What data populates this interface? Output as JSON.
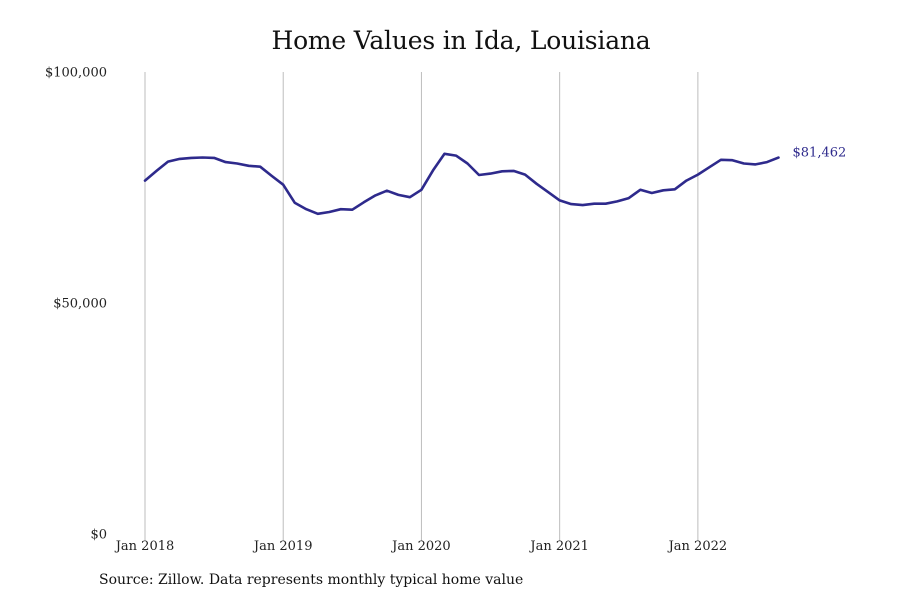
{
  "source_note": "Source: Zillow. Data represents monthly typical home value",
  "chart_data": {
    "type": "line",
    "title": "Home Values in Ida, Louisiana",
    "xlabel": "",
    "ylabel": "",
    "ylim": [
      0,
      100000
    ],
    "xlim": [
      "2018-01",
      "2022-08"
    ],
    "y_ticks": [
      {
        "value": 0,
        "label": "$0"
      },
      {
        "value": 50000,
        "label": "$50,000"
      },
      {
        "value": 100000,
        "label": "$100,000"
      }
    ],
    "x_ticks": [
      {
        "value": "2018-01",
        "label": "Jan 2018"
      },
      {
        "value": "2019-01",
        "label": "Jan 2019"
      },
      {
        "value": "2020-01",
        "label": "Jan 2020"
      },
      {
        "value": "2021-01",
        "label": "Jan 2021"
      },
      {
        "value": "2022-01",
        "label": "Jan 2022"
      }
    ],
    "grid": {
      "vertical": true,
      "horizontal": false
    },
    "line_color": "#2e2a8c",
    "grid_color": "#bdbdbd",
    "end_label": "$81,462",
    "series": [
      {
        "x": [
          "2018-01",
          "2018-02",
          "2018-03",
          "2018-04",
          "2018-05",
          "2018-06",
          "2018-07",
          "2018-08",
          "2018-09",
          "2018-10",
          "2018-11",
          "2018-12",
          "2019-01",
          "2019-02",
          "2019-03",
          "2019-04",
          "2019-05",
          "2019-06",
          "2019-07",
          "2019-08",
          "2019-09",
          "2019-10",
          "2019-11",
          "2019-12",
          "2020-01",
          "2020-02",
          "2020-03",
          "2020-04",
          "2020-05",
          "2020-06",
          "2020-07",
          "2020-08",
          "2020-09",
          "2020-10",
          "2020-11",
          "2020-12",
          "2021-01",
          "2021-02",
          "2021-03",
          "2021-04",
          "2021-05",
          "2021-06",
          "2021-07",
          "2021-08",
          "2021-09",
          "2021-10",
          "2021-11",
          "2021-12",
          "2022-01",
          "2022-02",
          "2022-03",
          "2022-04",
          "2022-05",
          "2022-06",
          "2022-07",
          "2022-08"
        ],
        "values": [
          76500,
          78600,
          80600,
          81200,
          81400,
          81500,
          81400,
          80500,
          80200,
          79700,
          79500,
          77500,
          75600,
          71700,
          70300,
          69300,
          69700,
          70300,
          70200,
          71800,
          73300,
          74300,
          73400,
          72900,
          74500,
          78700,
          82300,
          81900,
          80200,
          77700,
          78000,
          78500,
          78600,
          77800,
          75800,
          74000,
          72200,
          71400,
          71200,
          71500,
          71500,
          72000,
          72700,
          74500,
          73800,
          74400,
          74600,
          76500,
          77800,
          79400,
          81000,
          80900,
          80200,
          80000,
          80500,
          81462
        ]
      }
    ]
  }
}
